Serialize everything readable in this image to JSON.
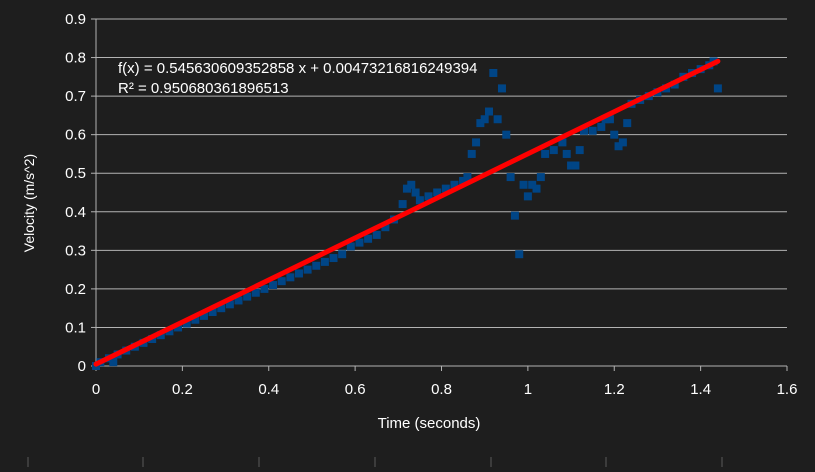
{
  "chart_data": {
    "type": "scatter",
    "title": "",
    "xlabel": "Time (seconds)",
    "ylabel": "Velocity (m/s^2)",
    "xlim": [
      0,
      1.6
    ],
    "ylim": [
      0,
      0.9
    ],
    "x_ticks": [
      "0",
      "0.2",
      "0.4",
      "0.6",
      "0.8",
      "1",
      "1.2",
      "1.4",
      "1.6"
    ],
    "y_ticks": [
      "0",
      "0.1",
      "0.2",
      "0.3",
      "0.4",
      "0.5",
      "0.6",
      "0.7",
      "0.8",
      "0.9"
    ],
    "grid": "horizontal",
    "legend": "none",
    "series": [
      {
        "color": "#004586",
        "marker": "square",
        "points": [
          [
            0.0,
            0.0
          ],
          [
            0.01,
            0.01
          ],
          [
            0.03,
            0.02
          ],
          [
            0.04,
            0.01
          ],
          [
            0.05,
            0.03
          ],
          [
            0.07,
            0.04
          ],
          [
            0.09,
            0.05
          ],
          [
            0.11,
            0.06
          ],
          [
            0.13,
            0.07
          ],
          [
            0.15,
            0.08
          ],
          [
            0.17,
            0.09
          ],
          [
            0.19,
            0.1
          ],
          [
            0.21,
            0.11
          ],
          [
            0.23,
            0.12
          ],
          [
            0.25,
            0.13
          ],
          [
            0.27,
            0.14
          ],
          [
            0.29,
            0.15
          ],
          [
            0.31,
            0.16
          ],
          [
            0.33,
            0.17
          ],
          [
            0.35,
            0.18
          ],
          [
            0.37,
            0.19
          ],
          [
            0.39,
            0.2
          ],
          [
            0.41,
            0.21
          ],
          [
            0.43,
            0.22
          ],
          [
            0.45,
            0.23
          ],
          [
            0.47,
            0.24
          ],
          [
            0.49,
            0.25
          ],
          [
            0.51,
            0.26
          ],
          [
            0.53,
            0.27
          ],
          [
            0.55,
            0.28
          ],
          [
            0.57,
            0.29
          ],
          [
            0.59,
            0.31
          ],
          [
            0.61,
            0.32
          ],
          [
            0.63,
            0.33
          ],
          [
            0.65,
            0.34
          ],
          [
            0.67,
            0.36
          ],
          [
            0.69,
            0.38
          ],
          [
            0.71,
            0.42
          ],
          [
            0.72,
            0.46
          ],
          [
            0.73,
            0.47
          ],
          [
            0.74,
            0.45
          ],
          [
            0.75,
            0.43
          ],
          [
            0.77,
            0.44
          ],
          [
            0.79,
            0.45
          ],
          [
            0.81,
            0.46
          ],
          [
            0.83,
            0.47
          ],
          [
            0.85,
            0.48
          ],
          [
            0.86,
            0.49
          ],
          [
            0.87,
            0.55
          ],
          [
            0.88,
            0.58
          ],
          [
            0.89,
            0.63
          ],
          [
            0.9,
            0.64
          ],
          [
            0.91,
            0.66
          ],
          [
            0.92,
            0.76
          ],
          [
            0.93,
            0.64
          ],
          [
            0.94,
            0.72
          ],
          [
            0.95,
            0.6
          ],
          [
            0.96,
            0.49
          ],
          [
            0.97,
            0.39
          ],
          [
            0.98,
            0.29
          ],
          [
            0.99,
            0.47
          ],
          [
            1.0,
            0.44
          ],
          [
            1.01,
            0.47
          ],
          [
            1.02,
            0.46
          ],
          [
            1.03,
            0.49
          ],
          [
            1.04,
            0.55
          ],
          [
            1.06,
            0.56
          ],
          [
            1.08,
            0.58
          ],
          [
            1.09,
            0.55
          ],
          [
            1.1,
            0.52
          ],
          [
            1.11,
            0.52
          ],
          [
            1.12,
            0.56
          ],
          [
            1.13,
            0.61
          ],
          [
            1.15,
            0.61
          ],
          [
            1.17,
            0.62
          ],
          [
            1.18,
            0.64
          ],
          [
            1.19,
            0.64
          ],
          [
            1.2,
            0.6
          ],
          [
            1.21,
            0.57
          ],
          [
            1.22,
            0.58
          ],
          [
            1.23,
            0.63
          ],
          [
            1.24,
            0.68
          ],
          [
            1.26,
            0.69
          ],
          [
            1.28,
            0.7
          ],
          [
            1.3,
            0.71
          ],
          [
            1.32,
            0.72
          ],
          [
            1.34,
            0.73
          ],
          [
            1.36,
            0.75
          ],
          [
            1.38,
            0.76
          ],
          [
            1.4,
            0.77
          ],
          [
            1.42,
            0.78
          ],
          [
            1.43,
            0.79
          ],
          [
            1.44,
            0.72
          ]
        ]
      }
    ],
    "trendline": {
      "color": "#ff0000",
      "slope": 0.545630609352858,
      "intercept": 0.00473216816249394,
      "x_range": [
        0,
        1.44
      ],
      "equation": "f(x) = 0.545630609352858 x + 0.00473216816249394",
      "r_squared": "R² = 0.950680361896513"
    }
  }
}
